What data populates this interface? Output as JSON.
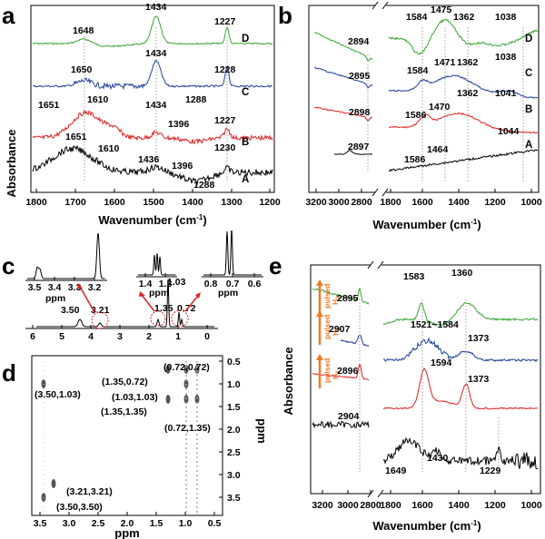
{
  "colors": {
    "A": "#000000",
    "B": "#dd2222",
    "C": "#1f3f99",
    "D": "#3aa336",
    "pulse": "#f07a22",
    "circle": "#dd2222"
  },
  "panels": {
    "a": {
      "label": "a",
      "ylabel": "Absorbance",
      "xlabel": "Wavenumber (cm",
      "xlabel_sup": "-1",
      "xlabel_tail": ")",
      "ticks": [
        "1800",
        "1700",
        "1600",
        "1500",
        "1400",
        "1300",
        "1200"
      ],
      "curve_labels": [
        "D",
        "C",
        "B",
        "A"
      ],
      "peaks": [
        "1648",
        "1434",
        "1227",
        "1650",
        "1434",
        "1228",
        "1651",
        "1610",
        "1288",
        "1434",
        "1396",
        "1227",
        "1651",
        "1610",
        "1436",
        "1396",
        "1230",
        "1288"
      ]
    },
    "b": {
      "label": "b",
      "xlabel": "Wavenumber (cm",
      "xlabel_sup": "-1",
      "xlabel_tail": ")",
      "ticks": [
        "3200",
        "3000",
        "2800",
        "1800",
        "1600",
        "1400",
        "1200",
        "1000"
      ],
      "curve_labels": [
        "D",
        "C",
        "B",
        "A"
      ],
      "peaks": [
        "2894",
        "1584",
        "1475",
        "1362",
        "1038",
        "2895",
        "1584",
        "1471",
        "1362",
        "1038",
        "2898",
        "1586",
        "1470",
        "1362",
        "1041",
        "2897",
        "1586",
        "1464",
        "1044"
      ]
    },
    "c": {
      "label": "c",
      "ticks": [
        "6",
        "5",
        "4",
        "3",
        "2",
        "1",
        "0"
      ],
      "inset1_ticks": [
        "3.5",
        "3.4",
        "3.3",
        "3.2"
      ],
      "inset2_ticks": [
        "1.4",
        "1.3"
      ],
      "inset3_ticks": [
        "0.8",
        "0.7",
        "0.6"
      ],
      "unit": "ppm",
      "peaks": [
        "1.03",
        "1.35",
        "0.72",
        "3.50",
        "3.21"
      ]
    },
    "d": {
      "label": "d",
      "xlabel": "ppm",
      "ylabel": "ppm",
      "xticks": [
        "3.5",
        "3.0",
        "2.5",
        "2.0",
        "1.5",
        "1.0",
        "0.5"
      ],
      "yticks": [
        "0.5",
        "1.0",
        "1.5",
        "2.0",
        "2.5",
        "3.0",
        "3.5"
      ],
      "crosspeaks": [
        "(0.72,0.72)",
        "(1.35,0.72)",
        "(1.03,1.03)",
        "(1.35,1.35)",
        "(0.72,1.35)",
        "(3.50,1.03)",
        "(3.21,3.21)",
        "(3.50,3.50)"
      ]
    },
    "e": {
      "label": "e",
      "ylabel": "Absorbance",
      "xlabel": "Wavenumber (cm",
      "xlabel_sup": "-1",
      "xlabel_tail": ")",
      "ticks": [
        "3200",
        "3000",
        "2800",
        "1800",
        "1600",
        "1400",
        "1200",
        "1000"
      ],
      "pulse_label": "pulsed",
      "pulse_gas": "H",
      "pulse_sub": "2",
      "peaks": [
        "2895",
        "1583",
        "1360",
        "2907",
        "1521~1584",
        "1373",
        "2896",
        "1594",
        "1373",
        "2904",
        "1649",
        "1430",
        "1229"
      ]
    }
  }
}
